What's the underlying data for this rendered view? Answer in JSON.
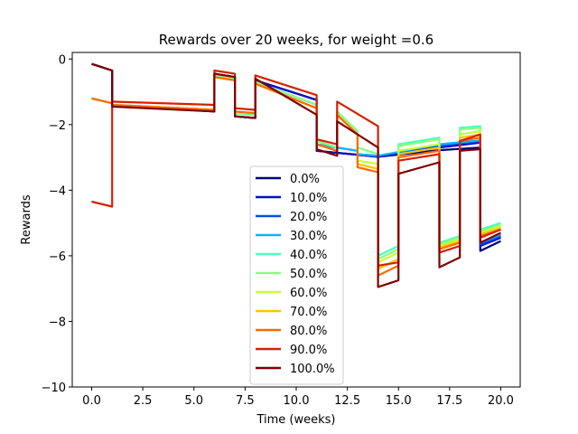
{
  "chart_data": {
    "type": "line",
    "title": "Rewards over 20 weeks, for weight =0.6",
    "xlabel": "Time (weeks)",
    "ylabel": "Rewards",
    "xlim": [
      -0.95,
      20.95
    ],
    "ylim": [
      -10,
      0.2
    ],
    "x_ticks": [
      0,
      2.5,
      5,
      7.5,
      10,
      12.5,
      15,
      17.5,
      20
    ],
    "x_tick_labels": [
      "0.0",
      "2.5",
      "5.0",
      "7.5",
      "10.0",
      "12.5",
      "15.0",
      "17.5",
      "20.0"
    ],
    "y_ticks": [
      0,
      -2,
      -4,
      -6,
      -8,
      -10
    ],
    "y_tick_labels": [
      "0",
      "−2",
      "−4",
      "−6",
      "−8",
      "−10"
    ],
    "grid": false,
    "legend_position": "center-bottom",
    "series": [
      {
        "name": "0.0%",
        "color": "#00007f",
        "points": [
          [
            0,
            -0.15
          ],
          [
            1,
            -0.35
          ],
          [
            1,
            -1.4
          ],
          [
            6,
            -1.6
          ],
          [
            6,
            -0.45
          ],
          [
            7,
            -0.55
          ],
          [
            7,
            -1.75
          ],
          [
            8,
            -1.8
          ],
          [
            8,
            -0.65
          ],
          [
            11,
            -1.25
          ],
          [
            11,
            -2.8
          ],
          [
            14,
            -2.98
          ],
          [
            17,
            -2.78
          ],
          [
            19,
            -2.7
          ],
          [
            19,
            -5.85
          ],
          [
            20,
            -5.55
          ]
        ]
      },
      {
        "name": "10.0%",
        "color": "#0010c8",
        "points": [
          [
            0,
            -0.15
          ],
          [
            1,
            -0.35
          ],
          [
            1,
            -1.4
          ],
          [
            6,
            -1.6
          ],
          [
            6,
            -0.45
          ],
          [
            7,
            -0.55
          ],
          [
            7,
            -1.75
          ],
          [
            8,
            -1.8
          ],
          [
            8,
            -0.65
          ],
          [
            11,
            -1.25
          ],
          [
            11,
            -2.8
          ],
          [
            14,
            -2.98
          ],
          [
            17,
            -2.7
          ],
          [
            19,
            -2.55
          ],
          [
            19,
            -5.7
          ],
          [
            20,
            -5.45
          ]
        ]
      },
      {
        "name": "20.0%",
        "color": "#0050ec",
        "points": [
          [
            0,
            -1.2
          ],
          [
            1,
            -1.35
          ],
          [
            1,
            -1.4
          ],
          [
            6,
            -1.55
          ],
          [
            6,
            -0.5
          ],
          [
            7,
            -0.6
          ],
          [
            7,
            -1.65
          ],
          [
            8,
            -1.7
          ],
          [
            8,
            -0.7
          ],
          [
            11,
            -1.4
          ],
          [
            11,
            -2.6
          ],
          [
            13,
            -2.8
          ],
          [
            13,
            -2.9
          ],
          [
            14,
            -2.95
          ],
          [
            17,
            -2.65
          ],
          [
            19,
            -2.5
          ],
          [
            19,
            -5.65
          ],
          [
            20,
            -5.4
          ]
        ]
      },
      {
        "name": "30.0%",
        "color": "#12b2f8",
        "points": [
          [
            0,
            -1.2
          ],
          [
            1,
            -1.35
          ],
          [
            1,
            -1.4
          ],
          [
            6,
            -1.55
          ],
          [
            6,
            -0.5
          ],
          [
            7,
            -0.6
          ],
          [
            7,
            -1.65
          ],
          [
            8,
            -1.7
          ],
          [
            8,
            -0.7
          ],
          [
            11,
            -1.4
          ],
          [
            11,
            -2.6
          ],
          [
            13,
            -2.8
          ],
          [
            13,
            -2.9
          ],
          [
            14,
            -2.95
          ],
          [
            17,
            -2.6
          ],
          [
            19,
            -2.48
          ],
          [
            19,
            -5.6
          ],
          [
            20,
            -5.35
          ]
        ]
      },
      {
        "name": "40.0%",
        "color": "#4bffc0",
        "points": [
          [
            0,
            -1.2
          ],
          [
            1,
            -1.35
          ],
          [
            1,
            -1.4
          ],
          [
            6,
            -1.55
          ],
          [
            6,
            -0.5
          ],
          [
            7,
            -0.6
          ],
          [
            7,
            -1.65
          ],
          [
            8,
            -1.7
          ],
          [
            8,
            -0.7
          ],
          [
            11,
            -1.4
          ],
          [
            11,
            -2.5
          ],
          [
            12,
            -2.7
          ],
          [
            12,
            -1.6
          ],
          [
            13,
            -2.2
          ],
          [
            13,
            -2.7
          ],
          [
            14,
            -2.9
          ],
          [
            14,
            -6.0
          ],
          [
            15,
            -5.7
          ],
          [
            15,
            -2.6
          ],
          [
            17,
            -2.4
          ],
          [
            17,
            -5.6
          ],
          [
            18,
            -5.4
          ],
          [
            18,
            -2.1
          ],
          [
            19,
            -2.05
          ],
          [
            19,
            -5.2
          ],
          [
            20,
            -5.0
          ]
        ]
      },
      {
        "name": "50.0%",
        "color": "#88ff80",
        "points": [
          [
            0,
            -1.2
          ],
          [
            1,
            -1.35
          ],
          [
            1,
            -1.4
          ],
          [
            6,
            -1.55
          ],
          [
            6,
            -0.5
          ],
          [
            7,
            -0.6
          ],
          [
            7,
            -1.65
          ],
          [
            8,
            -1.7
          ],
          [
            8,
            -0.7
          ],
          [
            11,
            -1.4
          ],
          [
            11,
            -2.5
          ],
          [
            12,
            -2.7
          ],
          [
            12,
            -1.6
          ],
          [
            13,
            -2.2
          ],
          [
            13,
            -2.7
          ],
          [
            14,
            -2.9
          ],
          [
            14,
            -6.1
          ],
          [
            15,
            -5.8
          ],
          [
            15,
            -2.65
          ],
          [
            17,
            -2.45
          ],
          [
            17,
            -5.65
          ],
          [
            18,
            -5.45
          ],
          [
            18,
            -2.15
          ],
          [
            19,
            -2.1
          ],
          [
            19,
            -5.25
          ],
          [
            20,
            -5.05
          ]
        ]
      },
      {
        "name": "60.0%",
        "color": "#c8ff36",
        "points": [
          [
            0,
            -1.2
          ],
          [
            1,
            -1.35
          ],
          [
            1,
            -1.4
          ],
          [
            6,
            -1.55
          ],
          [
            6,
            -0.55
          ],
          [
            7,
            -0.65
          ],
          [
            7,
            -1.6
          ],
          [
            8,
            -1.65
          ],
          [
            8,
            -0.75
          ],
          [
            11,
            -1.5
          ],
          [
            11,
            -2.6
          ],
          [
            12,
            -2.8
          ],
          [
            12,
            -1.7
          ],
          [
            13,
            -2.3
          ],
          [
            13,
            -3.1
          ],
          [
            14,
            -3.2
          ],
          [
            14,
            -6.2
          ],
          [
            15,
            -5.9
          ],
          [
            15,
            -2.8
          ],
          [
            17,
            -2.6
          ],
          [
            17,
            -5.7
          ],
          [
            18,
            -5.5
          ],
          [
            18,
            -2.3
          ],
          [
            19,
            -2.2
          ],
          [
            19,
            -5.3
          ],
          [
            20,
            -5.1
          ]
        ]
      },
      {
        "name": "70.0%",
        "color": "#ffc400",
        "points": [
          [
            0,
            -1.2
          ],
          [
            1,
            -1.35
          ],
          [
            1,
            -1.4
          ],
          [
            6,
            -1.55
          ],
          [
            6,
            -0.55
          ],
          [
            7,
            -0.65
          ],
          [
            7,
            -1.6
          ],
          [
            8,
            -1.65
          ],
          [
            8,
            -0.75
          ],
          [
            11,
            -1.5
          ],
          [
            11,
            -2.6
          ],
          [
            12,
            -2.8
          ],
          [
            12,
            -1.7
          ],
          [
            13,
            -2.3
          ],
          [
            13,
            -3.2
          ],
          [
            14,
            -3.35
          ],
          [
            14,
            -6.4
          ],
          [
            15,
            -6.1
          ],
          [
            15,
            -2.9
          ],
          [
            17,
            -2.7
          ],
          [
            17,
            -5.75
          ],
          [
            18,
            -5.55
          ],
          [
            18,
            -2.4
          ],
          [
            19,
            -2.3
          ],
          [
            19,
            -5.35
          ],
          [
            20,
            -5.15
          ]
        ]
      },
      {
        "name": "80.0%",
        "color": "#ff6a00",
        "points": [
          [
            0,
            -1.2
          ],
          [
            1,
            -1.35
          ],
          [
            1,
            -1.4
          ],
          [
            6,
            -1.55
          ],
          [
            6,
            -0.55
          ],
          [
            7,
            -0.65
          ],
          [
            7,
            -1.6
          ],
          [
            8,
            -1.65
          ],
          [
            8,
            -0.75
          ],
          [
            11,
            -1.5
          ],
          [
            11,
            -2.6
          ],
          [
            12,
            -2.8
          ],
          [
            12,
            -1.7
          ],
          [
            13,
            -2.3
          ],
          [
            13,
            -3.3
          ],
          [
            14,
            -3.45
          ],
          [
            14,
            -6.6
          ],
          [
            15,
            -6.3
          ],
          [
            15,
            -3.0
          ],
          [
            17,
            -2.8
          ],
          [
            17,
            -5.8
          ],
          [
            18,
            -5.6
          ],
          [
            18,
            -2.5
          ],
          [
            19,
            -2.4
          ],
          [
            19,
            -5.4
          ],
          [
            20,
            -5.2
          ]
        ]
      },
      {
        "name": "90.0%",
        "color": "#d62000",
        "points": [
          [
            0,
            -4.35
          ],
          [
            1,
            -4.5
          ],
          [
            1,
            -1.3
          ],
          [
            6,
            -1.4
          ],
          [
            6,
            -0.35
          ],
          [
            7,
            -0.45
          ],
          [
            7,
            -1.5
          ],
          [
            8,
            -1.55
          ],
          [
            8,
            -0.5
          ],
          [
            11,
            -1.1
          ],
          [
            11,
            -2.45
          ],
          [
            12,
            -2.6
          ],
          [
            12,
            -1.3
          ],
          [
            14,
            -2.05
          ],
          [
            14,
            -6.3
          ],
          [
            15,
            -6.2
          ],
          [
            15,
            -3.1
          ],
          [
            17,
            -2.9
          ],
          [
            17,
            -5.9
          ],
          [
            18,
            -5.7
          ],
          [
            18,
            -2.5
          ],
          [
            19,
            -2.3
          ],
          [
            19,
            -5.45
          ],
          [
            20,
            -5.2
          ]
        ]
      },
      {
        "name": "100.0%",
        "color": "#7f0000",
        "points": [
          [
            0,
            -0.15
          ],
          [
            1,
            -0.35
          ],
          [
            1,
            -1.45
          ],
          [
            6,
            -1.6
          ],
          [
            6,
            -0.45
          ],
          [
            7,
            -0.55
          ],
          [
            7,
            -1.75
          ],
          [
            8,
            -1.8
          ],
          [
            8,
            -0.6
          ],
          [
            11,
            -1.7
          ],
          [
            11,
            -2.75
          ],
          [
            12,
            -2.95
          ],
          [
            12,
            -1.9
          ],
          [
            14,
            -2.7
          ],
          [
            14,
            -6.95
          ],
          [
            15,
            -6.75
          ],
          [
            15,
            -3.5
          ],
          [
            17,
            -3.15
          ],
          [
            17,
            -6.35
          ],
          [
            18,
            -6.05
          ],
          [
            18,
            -2.8
          ],
          [
            19,
            -2.75
          ],
          [
            19,
            -5.6
          ],
          [
            20,
            -5.3
          ]
        ]
      }
    ]
  }
}
